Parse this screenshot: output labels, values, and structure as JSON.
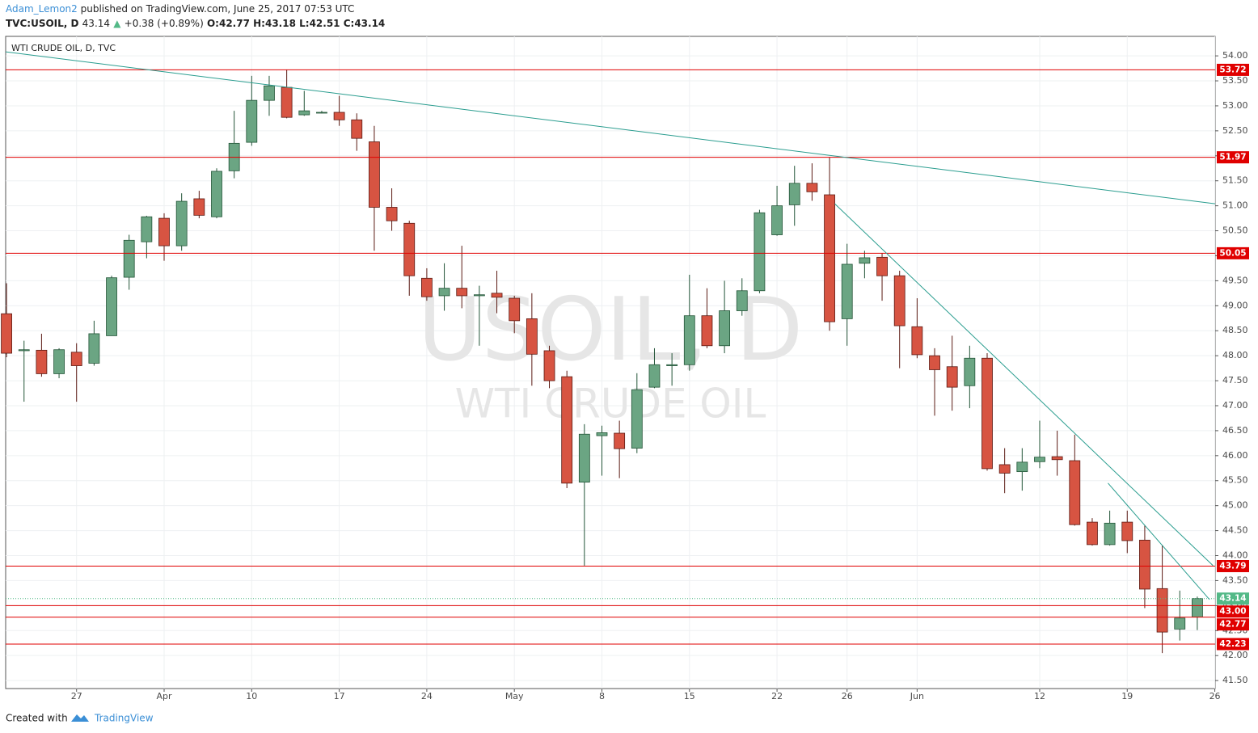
{
  "header": {
    "author": "Adam_Lemon2",
    "published": "published on TradingView.com, June 25, 2017 07:53 UTC",
    "symbol": "TVC:USOIL, D",
    "last": "43.14",
    "change": "+0.38 (+0.89%)",
    "open": "O:42.77",
    "high": "H:43.18",
    "low": "L:42.51",
    "close": "C:43.14"
  },
  "chart_data": {
    "type": "candlestick",
    "title": "WTI CRUDE OIL, D, TVC",
    "watermark": "USOIL, D",
    "watermark_subtitle": "WTI CRUDE OIL",
    "up_color": "#6ba583",
    "down_color": "#d75442",
    "up_border": "#225437",
    "down_border": "#5b1a13",
    "open": [
      48.84,
      48.1,
      48.11,
      47.64,
      48.07,
      47.85,
      48.4,
      49.57,
      50.28,
      50.75,
      50.2,
      51.14,
      50.78,
      51.7,
      52.27,
      53.11,
      53.37,
      52.82,
      52.87,
      52.87,
      52.72,
      52.28,
      50.97,
      50.65,
      49.55,
      49.2,
      49.35,
      49.2,
      49.25,
      49.15,
      48.74,
      48.1,
      47.58,
      45.47,
      46.4,
      46.45,
      46.15,
      47.37,
      47.8,
      47.82,
      48.8,
      48.2,
      48.9,
      49.3,
      50.42,
      51.02,
      51.45,
      51.22,
      48.74,
      49.85,
      49.97,
      49.6,
      48.58,
      48.0,
      47.78,
      47.4,
      47.95,
      45.82,
      45.68,
      45.88,
      45.98,
      45.9,
      44.67,
      44.22,
      44.67,
      44.31,
      43.34,
      42.53,
      42.77
    ],
    "high": [
      49.45,
      48.3,
      48.44,
      48.15,
      48.25,
      48.7,
      49.6,
      50.42,
      50.8,
      50.85,
      51.25,
      51.3,
      51.75,
      52.9,
      53.6,
      53.6,
      53.72,
      53.3,
      52.9,
      53.2,
      52.85,
      52.6,
      51.35,
      50.7,
      49.75,
      49.85,
      50.2,
      49.4,
      49.7,
      49.2,
      49.25,
      48.2,
      47.7,
      46.63,
      46.6,
      46.7,
      47.65,
      48.15,
      48.05,
      49.62,
      49.35,
      49.5,
      49.55,
      50.92,
      51.4,
      51.8,
      51.85,
      51.97,
      50.24,
      50.1,
      50.05,
      49.7,
      49.15,
      48.15,
      48.4,
      48.2,
      48.05,
      46.15,
      46.15,
      46.7,
      46.5,
      46.42,
      44.75,
      44.9,
      44.9,
      44.6,
      44.2,
      43.3,
      43.18
    ],
    "low": [
      47.97,
      47.08,
      47.58,
      47.55,
      47.08,
      47.8,
      48.4,
      49.32,
      49.95,
      49.9,
      50.1,
      50.75,
      50.75,
      51.55,
      52.2,
      52.8,
      52.75,
      52.8,
      52.85,
      52.6,
      52.1,
      50.1,
      50.5,
      49.2,
      49.1,
      48.9,
      48.95,
      48.2,
      48.85,
      48.45,
      47.4,
      47.35,
      45.35,
      43.8,
      45.6,
      45.55,
      46.05,
      47.35,
      47.4,
      47.7,
      48.15,
      48.05,
      48.8,
      49.25,
      50.4,
      50.6,
      51.1,
      48.5,
      48.2,
      49.55,
      49.1,
      47.75,
      47.95,
      46.8,
      46.9,
      46.95,
      45.7,
      45.25,
      45.3,
      45.75,
      45.6,
      44.6,
      44.2,
      44.2,
      44.05,
      42.95,
      42.05,
      42.3,
      42.51
    ],
    "close": [
      48.05,
      48.12,
      47.64,
      48.12,
      47.8,
      48.44,
      49.56,
      50.31,
      50.78,
      50.2,
      51.09,
      50.81,
      51.69,
      52.25,
      53.11,
      53.4,
      52.77,
      52.9,
      52.87,
      52.72,
      52.35,
      50.97,
      50.7,
      49.6,
      49.18,
      49.35,
      49.2,
      49.22,
      49.17,
      48.7,
      48.03,
      47.5,
      45.45,
      46.43,
      46.46,
      46.14,
      47.32,
      47.82,
      47.82,
      48.8,
      48.2,
      48.9,
      49.3,
      50.86,
      51.0,
      51.45,
      51.28,
      48.68,
      49.83,
      49.96,
      49.6,
      48.6,
      48.02,
      47.72,
      47.37,
      47.95,
      45.74,
      45.65,
      45.87,
      45.97,
      45.92,
      44.62,
      44.22,
      44.65,
      44.3,
      43.33,
      42.47,
      42.75,
      43.14
    ],
    "xlim": [
      -0.05,
      69.02
    ],
    "xticks": [
      {
        "value": 4,
        "label": "27"
      },
      {
        "value": 9,
        "label": "Apr"
      },
      {
        "value": 14,
        "label": "10"
      },
      {
        "value": 19,
        "label": "17"
      },
      {
        "value": 24,
        "label": "24"
      },
      {
        "value": 29,
        "label": "May"
      },
      {
        "value": 34,
        "label": "8"
      },
      {
        "value": 39,
        "label": "15"
      },
      {
        "value": 44,
        "label": "22"
      },
      {
        "value": 48,
        "label": "26"
      },
      {
        "value": 52,
        "label": "Jun"
      },
      {
        "value": 59,
        "label": "12"
      },
      {
        "value": 64,
        "label": "19"
      },
      {
        "value": 69,
        "label": "26"
      }
    ],
    "ylim": [
      41.34,
      54.39
    ],
    "yticks": [
      {
        "value": 41.5,
        "label": "41.50"
      },
      {
        "value": 42,
        "label": "42.00"
      },
      {
        "value": 42.5,
        "label": "42.50"
      },
      {
        "value": 43,
        "label": "43.00"
      },
      {
        "value": 43.5,
        "label": "43.50"
      },
      {
        "value": 44,
        "label": "44.00"
      },
      {
        "value": 44.5,
        "label": "44.50"
      },
      {
        "value": 45,
        "label": "45.00"
      },
      {
        "value": 45.5,
        "label": "45.50"
      },
      {
        "value": 46,
        "label": "46.00"
      },
      {
        "value": 46.5,
        "label": "46.50"
      },
      {
        "value": 47,
        "label": "47.00"
      },
      {
        "value": 47.5,
        "label": "47.50"
      },
      {
        "value": 48,
        "label": "48.00"
      },
      {
        "value": 48.5,
        "label": "48.50"
      },
      {
        "value": 49,
        "label": "49.00"
      },
      {
        "value": 49.5,
        "label": "49.50"
      },
      {
        "value": 50,
        "label": "50.00"
      },
      {
        "value": 50.5,
        "label": "50.50"
      },
      {
        "value": 51,
        "label": "51.00"
      },
      {
        "value": 51.5,
        "label": "51.50"
      },
      {
        "value": 52,
        "label": "52.00"
      },
      {
        "value": 52.5,
        "label": "52.50"
      },
      {
        "value": 53,
        "label": "53.00"
      },
      {
        "value": 53.5,
        "label": "53.50"
      },
      {
        "value": 54,
        "label": "54.00"
      }
    ],
    "grid": true,
    "level_color": "#e00000",
    "levels": [
      {
        "value": 53.72,
        "label": "53.72"
      },
      {
        "value": 51.97,
        "label": "51.97"
      },
      {
        "value": 50.05,
        "label": "50.05"
      },
      {
        "value": 43.79,
        "label": "43.79"
      },
      {
        "value": 43.0,
        "label": "43.00"
      },
      {
        "value": 42.77,
        "label": "42.77"
      },
      {
        "value": 42.23,
        "label": "42.23"
      }
    ],
    "last_price": {
      "value": 43.14,
      "label": "43.14"
    },
    "last_color": "#53b987",
    "trend_color": "#2a9d8f",
    "trendlines": [
      {
        "x": [
          -0.05,
          69.02
        ],
        "y": [
          54.08,
          51.04
        ]
      },
      {
        "x": [
          47.3,
          68.9
        ],
        "y": [
          51.04,
          43.8
        ]
      },
      {
        "x": [
          62.9,
          68.7
        ],
        "y": [
          45.45,
          43.12
        ]
      }
    ]
  },
  "footer": {
    "created": "Created with",
    "brand": "TradingView"
  }
}
